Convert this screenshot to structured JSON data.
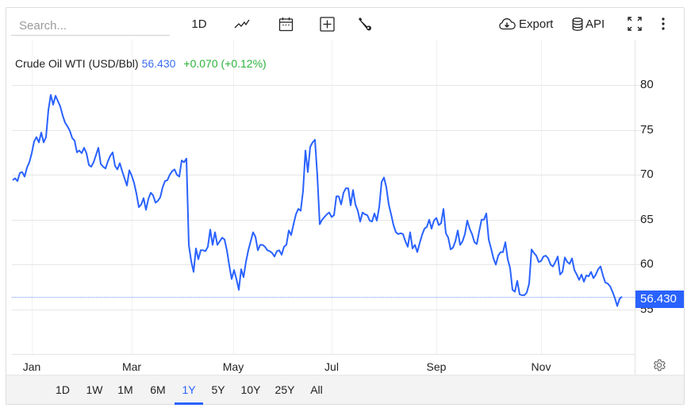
{
  "toolbar": {
    "search_placeholder": "Search...",
    "interval_label": "1D",
    "chart_type_icon": "line-chart-icon",
    "calendar_icon": "calendar-icon",
    "add_indicator_icon": "plus-box-icon",
    "settings_tool_icon": "wrench-icon",
    "export_label": "Export",
    "export_icon": "cloud-download-icon",
    "api_label": "API",
    "api_icon": "database-icon",
    "fullscreen_icon": "fullscreen-icon",
    "more_icon": "more-vertical-icon"
  },
  "legend": {
    "name": "Crude Oil WTI (USD/Bbl)",
    "price": "56.430",
    "change": "+0.070 (+0.12%)"
  },
  "colors": {
    "line": "#2962ff",
    "price_text": "#3d6ef0",
    "change_positive": "#2db33b",
    "price_tag_bg": "#2962ff",
    "grid": "#e6e6e6"
  },
  "price_tag": "56.430",
  "range_tabs": [
    {
      "label": "1D",
      "active": false
    },
    {
      "label": "1W",
      "active": false
    },
    {
      "label": "1M",
      "active": false
    },
    {
      "label": "6M",
      "active": false
    },
    {
      "label": "1Y",
      "active": true
    },
    {
      "label": "5Y",
      "active": false
    },
    {
      "label": "10Y",
      "active": false
    },
    {
      "label": "25Y",
      "active": false
    },
    {
      "label": "All",
      "active": false
    }
  ],
  "chart_data": {
    "type": "line",
    "title": "Crude Oil WTI (USD/Bbl)",
    "xlabel": "",
    "ylabel": "",
    "x_ticks": [
      "Jan",
      "Mar",
      "May",
      "Jul",
      "Sep",
      "Nov"
    ],
    "y_ticks": [
      55,
      60,
      65,
      70,
      75,
      80
    ],
    "ylim": [
      47,
      83
    ],
    "grid": true,
    "last_value": 56.43,
    "series": [
      {
        "name": "Crude Oil WTI",
        "points": [
          [
            16,
            69.4
          ],
          [
            19,
            69.6
          ],
          [
            22,
            69.3
          ],
          [
            25,
            70.2
          ],
          [
            28,
            70.3
          ],
          [
            31,
            69.8
          ],
          [
            34,
            70.8
          ],
          [
            37,
            71.4
          ],
          [
            40,
            72.4
          ],
          [
            43,
            73.7
          ],
          [
            46,
            74.2
          ],
          [
            49,
            73.6
          ],
          [
            52,
            74.7
          ],
          [
            55,
            73.6
          ],
          [
            58,
            74.2
          ],
          [
            61,
            77.2
          ],
          [
            64,
            78.9
          ],
          [
            67,
            77.8
          ],
          [
            70,
            78.8
          ],
          [
            73,
            78.2
          ],
          [
            76,
            77.6
          ],
          [
            79,
            76.6
          ],
          [
            82,
            75.8
          ],
          [
            85,
            75.4
          ],
          [
            88,
            74.9
          ],
          [
            91,
            74.1
          ],
          [
            94,
            73.8
          ],
          [
            97,
            72.5
          ],
          [
            100,
            72.7
          ],
          [
            103,
            72.4
          ],
          [
            106,
            73.0
          ],
          [
            109,
            72.4
          ],
          [
            112,
            71.1
          ],
          [
            115,
            70.9
          ],
          [
            118,
            71.4
          ],
          [
            121,
            72.2
          ],
          [
            124,
            73.0
          ],
          [
            127,
            71.2
          ],
          [
            130,
            70.9
          ],
          [
            133,
            70.7
          ],
          [
            136,
            71.5
          ],
          [
            139,
            72.1
          ],
          [
            142,
            72.5
          ],
          [
            145,
            71.0
          ],
          [
            148,
            70.6
          ],
          [
            151,
            71.3
          ],
          [
            154,
            70.4
          ],
          [
            157,
            69.6
          ],
          [
            160,
            68.8
          ],
          [
            163,
            70.5
          ],
          [
            166,
            69.9
          ],
          [
            169,
            69.1
          ],
          [
            172,
            67.9
          ],
          [
            175,
            66.4
          ],
          [
            178,
            66.7
          ],
          [
            181,
            67.4
          ],
          [
            184,
            66.1
          ],
          [
            187,
            67.3
          ],
          [
            190,
            68.0
          ],
          [
            193,
            67.7
          ],
          [
            196,
            66.9
          ],
          [
            199,
            67.1
          ],
          [
            202,
            67.5
          ],
          [
            205,
            68.6
          ],
          [
            208,
            69.3
          ],
          [
            211,
            69.4
          ],
          [
            214,
            70.0
          ],
          [
            217,
            70.4
          ],
          [
            220,
            70.6
          ],
          [
            223,
            70.0
          ],
          [
            226,
            69.8
          ],
          [
            229,
            71.6
          ],
          [
            232,
            71.4
          ],
          [
            235,
            71.8
          ],
          [
            238,
            62.2
          ],
          [
            241,
            60.4
          ],
          [
            244,
            59.2
          ],
          [
            247,
            61.8
          ],
          [
            250,
            60.6
          ],
          [
            253,
            61.6
          ],
          [
            256,
            61.6
          ],
          [
            259,
            61.5
          ],
          [
            262,
            62.0
          ],
          [
            265,
            63.9
          ],
          [
            268,
            62.2
          ],
          [
            271,
            63.6
          ],
          [
            274,
            62.2
          ],
          [
            277,
            62.6
          ],
          [
            280,
            63.0
          ],
          [
            283,
            62.8
          ],
          [
            286,
            61.6
          ],
          [
            289,
            59.9
          ],
          [
            292,
            58.4
          ],
          [
            295,
            59.4
          ],
          [
            298,
            58.4
          ],
          [
            301,
            57.2
          ],
          [
            304,
            59.5
          ],
          [
            307,
            58.6
          ],
          [
            310,
            60.3
          ],
          [
            313,
            61.6
          ],
          [
            316,
            62.6
          ],
          [
            319,
            63.6
          ],
          [
            322,
            63.1
          ],
          [
            325,
            61.6
          ],
          [
            328,
            62.2
          ],
          [
            331,
            62.2
          ],
          [
            334,
            62.0
          ],
          [
            337,
            61.6
          ],
          [
            340,
            61.5
          ],
          [
            343,
            61.3
          ],
          [
            346,
            60.9
          ],
          [
            349,
            61.5
          ],
          [
            352,
            61.6
          ],
          [
            355,
            61.1
          ],
          [
            358,
            62.0
          ],
          [
            361,
            62.2
          ],
          [
            364,
            63.8
          ],
          [
            367,
            63.3
          ],
          [
            370,
            64.5
          ],
          [
            373,
            65.6
          ],
          [
            376,
            66.2
          ],
          [
            379,
            66.0
          ],
          [
            382,
            68.2
          ],
          [
            385,
            72.7
          ],
          [
            388,
            70.3
          ],
          [
            391,
            73.1
          ],
          [
            394,
            73.6
          ],
          [
            397,
            73.9
          ],
          [
            400,
            69.9
          ],
          [
            403,
            64.5
          ],
          [
            406,
            65.0
          ],
          [
            409,
            65.3
          ],
          [
            412,
            65.6
          ],
          [
            415,
            65.8
          ],
          [
            418,
            65.3
          ],
          [
            421,
            65.5
          ],
          [
            424,
            67.6
          ],
          [
            427,
            67.6
          ],
          [
            430,
            66.7
          ],
          [
            433,
            68.0
          ],
          [
            436,
            68.5
          ],
          [
            439,
            68.5
          ],
          [
            442,
            66.6
          ],
          [
            445,
            68.3
          ],
          [
            448,
            66.7
          ],
          [
            451,
            66.0
          ],
          [
            454,
            64.8
          ],
          [
            457,
            65.8
          ],
          [
            460,
            65.6
          ],
          [
            463,
            65.5
          ],
          [
            466,
            64.9
          ],
          [
            469,
            64.8
          ],
          [
            472,
            65.7
          ],
          [
            475,
            64.9
          ],
          [
            478,
            66.4
          ],
          [
            481,
            69.2
          ],
          [
            484,
            69.7
          ],
          [
            487,
            68.6
          ],
          [
            490,
            66.7
          ],
          [
            493,
            65.6
          ],
          [
            496,
            64.4
          ],
          [
            499,
            63.6
          ],
          [
            502,
            63.4
          ],
          [
            505,
            63.5
          ],
          [
            508,
            63.4
          ],
          [
            511,
            62.6
          ],
          [
            514,
            62.0
          ],
          [
            517,
            63.6
          ],
          [
            520,
            61.8
          ],
          [
            523,
            62.2
          ],
          [
            526,
            61.4
          ],
          [
            529,
            62.4
          ],
          [
            532,
            63.3
          ],
          [
            535,
            64.0
          ],
          [
            538,
            64.2
          ],
          [
            541,
            65.0
          ],
          [
            544,
            64.0
          ],
          [
            547,
            64.9
          ],
          [
            550,
            65.2
          ],
          [
            553,
            64.4
          ],
          [
            556,
            64.6
          ],
          [
            559,
            66.2
          ],
          [
            562,
            63.5
          ],
          [
            565,
            63.0
          ],
          [
            568,
            61.7
          ],
          [
            571,
            61.9
          ],
          [
            574,
            62.6
          ],
          [
            577,
            63.8
          ],
          [
            580,
            62.2
          ],
          [
            583,
            62.6
          ],
          [
            586,
            63.4
          ],
          [
            589,
            64.9
          ],
          [
            592,
            64.0
          ],
          [
            595,
            63.4
          ],
          [
            598,
            62.5
          ],
          [
            601,
            62.3
          ],
          [
            604,
            63.7
          ],
          [
            607,
            65.0
          ],
          [
            610,
            65.0
          ],
          [
            613,
            65.7
          ],
          [
            616,
            62.8
          ],
          [
            619,
            61.8
          ],
          [
            622,
            60.7
          ],
          [
            625,
            60.0
          ],
          [
            628,
            61.0
          ],
          [
            631,
            61.4
          ],
          [
            634,
            61.4
          ],
          [
            637,
            62.5
          ],
          [
            640,
            60.6
          ],
          [
            643,
            59.6
          ],
          [
            646,
            57.2
          ],
          [
            649,
            57.0
          ],
          [
            652,
            58.2
          ],
          [
            655,
            56.7
          ],
          [
            658,
            56.6
          ],
          [
            661,
            56.6
          ],
          [
            664,
            56.9
          ],
          [
            667,
            57.9
          ],
          [
            670,
            61.7
          ],
          [
            673,
            61.3
          ],
          [
            676,
            61.0
          ],
          [
            679,
            60.3
          ],
          [
            682,
            60.4
          ],
          [
            685,
            60.9
          ],
          [
            688,
            61.0
          ],
          [
            691,
            60.7
          ],
          [
            694,
            60.0
          ],
          [
            697,
            59.8
          ],
          [
            700,
            60.3
          ],
          [
            703,
            60.9
          ],
          [
            706,
            58.9
          ],
          [
            709,
            59.2
          ],
          [
            712,
            60.8
          ],
          [
            715,
            60.3
          ],
          [
            718,
            60.1
          ],
          [
            721,
            60.7
          ],
          [
            724,
            59.4
          ],
          [
            727,
            58.9
          ],
          [
            730,
            58.3
          ],
          [
            733,
            58.9
          ],
          [
            736,
            58.1
          ],
          [
            739,
            58.8
          ],
          [
            742,
            58.7
          ],
          [
            745,
            59.2
          ],
          [
            748,
            58.5
          ],
          [
            751,
            58.9
          ],
          [
            754,
            59.5
          ],
          [
            757,
            59.8
          ],
          [
            760,
            58.8
          ],
          [
            763,
            58.0
          ],
          [
            766,
            57.9
          ],
          [
            769,
            57.6
          ],
          [
            772,
            57.0
          ],
          [
            775,
            56.3
          ],
          [
            778,
            55.4
          ],
          [
            781,
            56.2
          ],
          [
            784,
            56.43
          ]
        ]
      }
    ]
  }
}
